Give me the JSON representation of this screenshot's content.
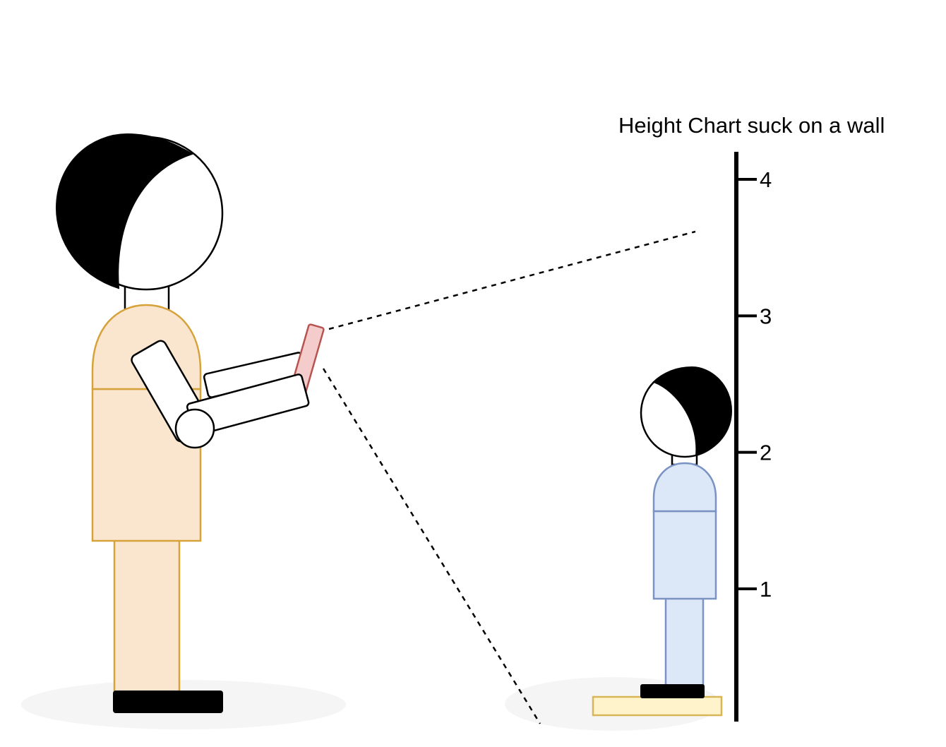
{
  "title": "Height Chart suck on a wall",
  "ticks": [
    {
      "label": "1",
      "value": 1
    },
    {
      "label": "2",
      "value": 2
    },
    {
      "label": "3",
      "value": 3
    },
    {
      "label": "4",
      "value": 4
    }
  ],
  "colors": {
    "adult_body_fill": "#fae5cf",
    "adult_body_stroke": "#d6a23a",
    "child_body_fill": "#dce8f8",
    "child_body_stroke": "#7a93c2",
    "phone_fill": "#f4cccc",
    "phone_stroke": "#b85450",
    "step_fill": "#fff3cc",
    "step_stroke": "#d6b656",
    "shadow": "#f5f5f5",
    "hair": "#000000",
    "outline": "#000000"
  }
}
